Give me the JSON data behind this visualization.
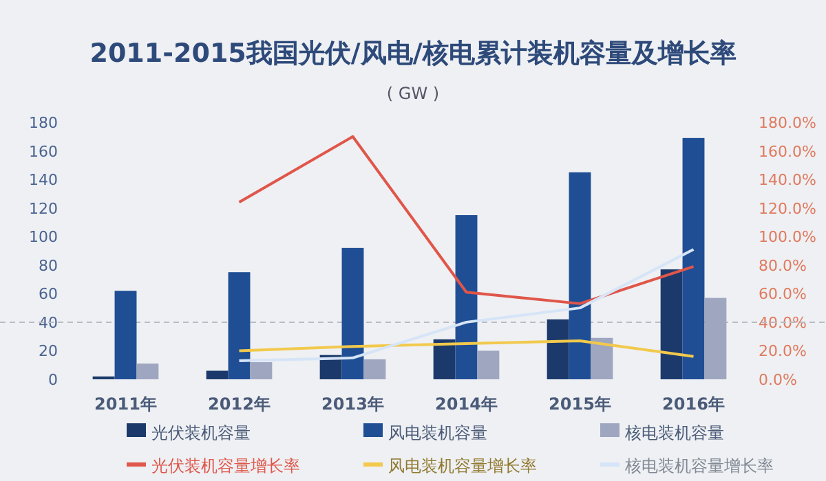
{
  "chart_data": {
    "type": "bar",
    "title": "2011-2015我国光伏/风电/核电累计装机容量及增长率",
    "subtitle": "( GW )",
    "categories": [
      "2011年",
      "2012年",
      "2013年",
      "2014年",
      "2015年",
      "2016年"
    ],
    "series": [
      {
        "name": "光伏装机容量",
        "color": "#1b3a6b",
        "values": [
          2,
          6,
          17,
          28,
          42,
          77
        ]
      },
      {
        "name": "风电装机容量",
        "color": "#1f4e94",
        "values": [
          62,
          75,
          92,
          115,
          145,
          169
        ]
      },
      {
        "name": "核电装机容量",
        "color": "#9ea6c0",
        "values": [
          11,
          12,
          14,
          20,
          29,
          57
        ]
      },
      {
        "name": "光伏装机容量增长率",
        "type": "line",
        "axis": "y2",
        "color": "#e0564a",
        "values": [
          null,
          124,
          170,
          61,
          53,
          79
        ]
      },
      {
        "name": "风电装机容量增长率",
        "type": "line",
        "axis": "y2",
        "color": "#f2c94c",
        "values": [
          null,
          20,
          23,
          25,
          27,
          16
        ]
      },
      {
        "name": "核电装机容量增长率",
        "type": "line",
        "axis": "y2",
        "color": "#d6e4f7",
        "values": [
          null,
          13,
          15,
          40,
          50,
          91
        ]
      }
    ],
    "ylim": [
      0,
      180
    ],
    "yticks": [
      0,
      20,
      40,
      60,
      80,
      100,
      120,
      140,
      160,
      180
    ],
    "y2lim": [
      0,
      180
    ],
    "y2ticks": [
      {
        "value": 0,
        "label": "0.0%"
      },
      {
        "value": 20,
        "label": "20.0%"
      },
      {
        "value": 40,
        "label": "40.0%"
      },
      {
        "value": 60,
        "label": "60.0%"
      },
      {
        "value": 80,
        "label": "80.0%"
      },
      {
        "value": 100,
        "label": "100.0%"
      },
      {
        "value": 120,
        "label": "120.0%"
      },
      {
        "value": 140,
        "label": "140.0%"
      },
      {
        "value": 160,
        "label": "160.0%"
      },
      {
        "value": 180,
        "label": "180.0%"
      }
    ],
    "ref_lines": [
      {
        "axis": "y",
        "value": 40,
        "color": "#b8bcc4",
        "line_style": "dashed"
      }
    ],
    "grid": false,
    "legend": "bottom"
  }
}
